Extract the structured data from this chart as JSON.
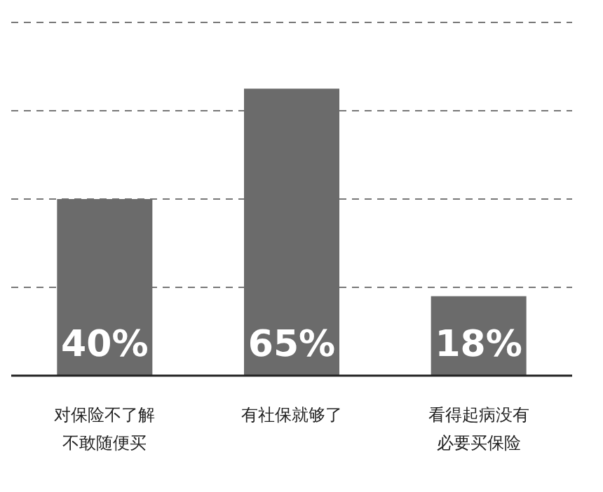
{
  "chart_data": {
    "type": "bar",
    "categories": [
      "对保险不了解不敢随便买",
      "有社保就够了",
      "看得起病没有必要买保险"
    ],
    "values": [
      40,
      65,
      18
    ],
    "value_labels": [
      "40%",
      "65%",
      "18%"
    ],
    "color": "#6b6b6b",
    "ylim": [
      0,
      80
    ],
    "yticks": [
      {
        "value": 20,
        "label": null
      },
      {
        "value": 40,
        "label": null
      },
      {
        "value": 60,
        "label": null
      },
      {
        "value": 80,
        "label": null
      }
    ],
    "grid": "y",
    "tick_labels": "x"
  }
}
